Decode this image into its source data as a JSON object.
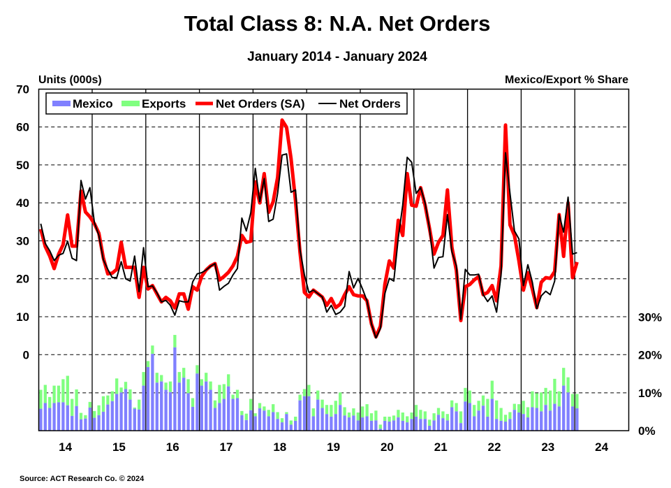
{
  "chart_data": {
    "type": "combo",
    "title": "Total Class 8: N.A. Net Orders",
    "subtitle": "January 2014 - January 2024",
    "ylabel_left": "Units (000s)",
    "ylabel_right": "Mexico/Export % Share",
    "source": "Source: ACT Research Co. © 2024",
    "ylim_left": [
      0,
      70
    ],
    "yticks_left": [
      "70",
      "60",
      "50",
      "40",
      "30",
      "20",
      "10",
      "0"
    ],
    "ylim_right": [
      0,
      30
    ],
    "yticks_right": [
      "30%",
      "20%",
      "10%",
      "0%"
    ],
    "xticks": [
      "14",
      "15",
      "16",
      "17",
      "18",
      "19",
      "20",
      "21",
      "22",
      "23",
      "24"
    ],
    "grid": "dashed horizontal, solid vertical at year boundaries",
    "legend_position": "top-left",
    "colors": {
      "mexico": "#8080ff",
      "exports": "#80ff80",
      "net_orders_sa": "#ff0000",
      "net_orders": "#000000"
    },
    "legend": [
      "Mexico",
      "Exports",
      "Net Orders (SA)",
      "Net Orders"
    ],
    "periods_start": "2014-01",
    "periods_end": "2024-01",
    "series": [
      {
        "name": "Mexico",
        "type": "stacked-bar",
        "axis": "right",
        "unit": "%",
        "values": [
          5.8,
          7.3,
          6.0,
          7.3,
          7.5,
          7.5,
          6.7,
          3.9,
          6.5,
          3.0,
          3.2,
          6.1,
          3.4,
          4.1,
          5.0,
          6.9,
          7.8,
          9.7,
          10.1,
          11.0,
          8.2,
          5.8,
          5.6,
          11.9,
          16.8,
          20.3,
          12.7,
          13.0,
          10.8,
          10.2,
          22.0,
          12.7,
          14.0,
          9.9,
          6.3,
          15.1,
          11.9,
          13.0,
          10.8,
          6.0,
          7.3,
          8.4,
          11.7,
          8.4,
          8.6,
          4.1,
          2.8,
          5.4,
          3.8,
          5.9,
          5.3,
          3.8,
          4.9,
          3.1,
          2.2,
          4.4,
          1.6,
          2.6,
          8.0,
          9.1,
          9.1,
          3.8,
          8.2,
          6.0,
          4.4,
          3.7,
          4.4,
          6.8,
          4.0,
          3.5,
          4.0,
          2.7,
          3.5,
          3.8,
          2.6,
          2.7,
          0.5,
          2.6,
          2.4,
          2.7,
          3.5,
          2.6,
          2.2,
          3.1,
          3.7,
          3.1,
          3.1,
          1.3,
          2.7,
          4.2,
          3.3,
          2.7,
          6.2,
          5.1,
          2.0,
          7.7,
          7.3,
          3.8,
          5.3,
          6.6,
          3.7,
          8.4,
          3.1,
          2.6,
          2.4,
          3.1,
          5.5,
          4.8,
          4.4,
          3.5,
          6.2,
          6.0,
          5.1,
          6.8,
          5.3,
          7.1,
          6.4,
          11.9,
          10.1,
          6.4,
          5.9
        ]
      },
      {
        "name": "Exports",
        "type": "stacked-bar",
        "axis": "right",
        "unit": "%",
        "values": [
          5.0,
          4.8,
          2.9,
          4.6,
          4.4,
          6.1,
          7.8,
          4.5,
          4.4,
          1.7,
          0.9,
          1.5,
          1.8,
          2.6,
          4.1,
          2.4,
          2.6,
          4.1,
          1.3,
          1.9,
          2.7,
          0.3,
          2.6,
          3.6,
          1.6,
          2.2,
          2.6,
          1.7,
          1.9,
          2.8,
          3.3,
          2.8,
          2.6,
          3.7,
          2.3,
          2.2,
          1.7,
          2.3,
          2.2,
          2.0,
          4.8,
          3.9,
          3.2,
          1.1,
          2.2,
          1.1,
          1.7,
          3.0,
          0.8,
          1.4,
          1.1,
          1.7,
          2.1,
          1.8,
          1.1,
          0.5,
          1.1,
          1.1,
          1.5,
          1.9,
          3.0,
          2.1,
          2.4,
          2.2,
          2.4,
          3.1,
          3.5,
          3.3,
          2.2,
          1.3,
          1.9,
          2.1,
          2.9,
          3.2,
          2.0,
          2.6,
          1.1,
          1.1,
          1.3,
          1.3,
          2.0,
          2.2,
          1.6,
          1.7,
          3.1,
          2.4,
          2.0,
          1.6,
          1.9,
          1.8,
          1.8,
          1.7,
          1.8,
          2.2,
          3.1,
          3.6,
          3.3,
          3.0,
          2.6,
          2.7,
          4.7,
          4.8,
          4.9,
          3.4,
          1.8,
          1.8,
          1.6,
          2.2,
          3.5,
          2.7,
          4.2,
          3.9,
          5.0,
          4.5,
          5.3,
          6.6,
          4.0,
          4.7,
          4.0,
          3.3,
          3.8
        ]
      },
      {
        "name": "Net Orders (SA)",
        "type": "line",
        "axis": "left",
        "unit": "000s",
        "values": [
          33.1,
          28.5,
          26.0,
          22.7,
          26.5,
          29.0,
          36.8,
          28.6,
          28.6,
          43.1,
          37.6,
          36.3,
          34.5,
          32.0,
          25.5,
          21.3,
          21.5,
          22.5,
          29.6,
          23.0,
          23.0,
          23.0,
          15.1,
          23.0,
          17.3,
          18.2,
          16.0,
          13.9,
          15.1,
          14.2,
          12.3,
          16.0,
          16.0,
          12.0,
          17.9,
          17.0,
          20.6,
          22.3,
          23.4,
          24.0,
          19.7,
          20.6,
          21.7,
          23.4,
          25.9,
          31.4,
          29.6,
          29.9,
          45.5,
          40.0,
          47.7,
          37.5,
          40.3,
          46.7,
          61.8,
          59.9,
          51.7,
          40.6,
          27.1,
          16.4,
          15.2,
          17.0,
          16.1,
          15.2,
          13.0,
          14.8,
          12.4,
          13.3,
          15.8,
          17.9,
          15.8,
          15.5,
          15.5,
          14.2,
          8.1,
          4.7,
          7.5,
          18.5,
          24.7,
          22.8,
          35.4,
          31.4,
          47.7,
          39.4,
          39.1,
          44.0,
          39.4,
          33.2,
          26.5,
          29.6,
          31.4,
          43.4,
          28.3,
          22.2,
          9.0,
          17.9,
          18.5,
          19.7,
          20.6,
          15.8,
          16.4,
          18.2,
          14.2,
          23.4,
          60.5,
          34.2,
          31.4,
          24.7,
          17.0,
          21.6,
          17.3,
          12.4,
          19.1,
          20.3,
          20.1,
          21.9,
          36.9,
          25.9,
          40.0,
          20.3,
          24.4
        ]
      },
      {
        "name": "Net Orders",
        "type": "line",
        "axis": "left",
        "unit": "000s",
        "values": [
          34.5,
          29.3,
          27.4,
          24.8,
          26.2,
          26.7,
          29.9,
          25.4,
          24.8,
          45.9,
          41.0,
          44.0,
          34.8,
          31.4,
          25.0,
          22.5,
          20.3,
          20.3,
          24.5,
          20.0,
          19.4,
          26.0,
          16.6,
          28.2,
          17.9,
          18.1,
          16.3,
          13.9,
          14.3,
          13.0,
          10.4,
          14.2,
          13.9,
          13.9,
          19.2,
          21.3,
          21.6,
          22.3,
          23.3,
          24.0,
          17.0,
          18.0,
          18.8,
          21.0,
          22.7,
          36.0,
          32.6,
          37.4,
          49.1,
          40.3,
          46.4,
          35.1,
          35.7,
          42.5,
          52.6,
          52.9,
          42.8,
          43.4,
          27.7,
          21.0,
          16.4,
          17.0,
          16.1,
          15.2,
          11.2,
          13.0,
          10.6,
          11.2,
          12.7,
          21.9,
          17.6,
          20.1,
          17.3,
          14.2,
          8.1,
          4.4,
          6.9,
          16.1,
          20.1,
          19.4,
          30.8,
          39.4,
          52.0,
          50.7,
          42.5,
          44.0,
          40.0,
          33.2,
          22.8,
          25.6,
          25.8,
          36.9,
          27.1,
          23.4,
          9.3,
          22.5,
          21.0,
          21.0,
          21.2,
          15.8,
          14.0,
          15.5,
          11.2,
          21.0,
          53.2,
          42.5,
          32.6,
          30.5,
          18.2,
          23.7,
          19.1,
          12.1,
          15.5,
          16.7,
          15.8,
          19.4,
          36.9,
          32.3,
          41.5,
          26.5,
          26.9
        ]
      }
    ]
  }
}
